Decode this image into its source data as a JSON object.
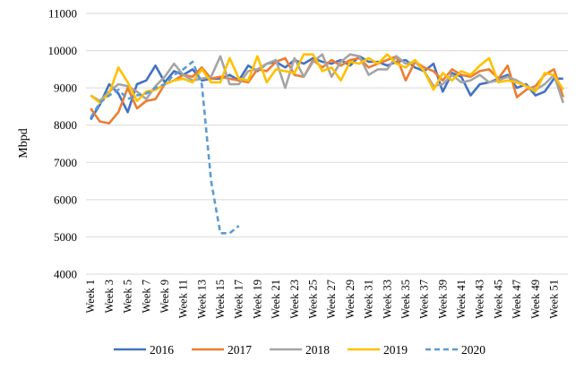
{
  "chart_data": {
    "type": "line",
    "ylabel": "Mbpd",
    "ylim": [
      4000,
      11000
    ],
    "yticks": [
      "4000",
      "5000",
      "6000",
      "7000",
      "8000",
      "9000",
      "10000",
      "11000"
    ],
    "xtick_labels": [
      "Week 1",
      "Week 3",
      "Week 5",
      "Week 7",
      "Week 9",
      "Week 11",
      "Week 13",
      "Week 15",
      "Week 17",
      "Week 19",
      "Week 21",
      "Week 23",
      "Week 25",
      "Week 27",
      "Week 29",
      "Week 31",
      "Week 33",
      "Week 35",
      "Week 37",
      "Week 39",
      "Week 41",
      "Week 43",
      "Week 45",
      "Week 47",
      "Week 49",
      "Week 51"
    ],
    "legend_position": "bottom",
    "grid": "horizontal",
    "series": [
      {
        "name": "2016",
        "color": "#4472c4",
        "style": "solid",
        "values": [
          8150,
          8550,
          9100,
          8850,
          8350,
          9100,
          9200,
          9600,
          9150,
          9450,
          9350,
          9500,
          9200,
          9250,
          9250,
          9350,
          9200,
          9600,
          9450,
          9650,
          9700,
          9550,
          9750,
          9650,
          9800,
          9700,
          9650,
          9750,
          9600,
          9850,
          9700,
          9700,
          9600,
          9700,
          9750,
          9550,
          9450,
          9650,
          8900,
          9400,
          9300,
          8800,
          9100,
          9150,
          9250,
          9350,
          9000,
          9100,
          8800,
          8900,
          9250,
          9250
        ]
      },
      {
        "name": "2017",
        "color": "#ed7d31",
        "style": "solid",
        "values": [
          8450,
          8100,
          8050,
          8350,
          9000,
          8450,
          8650,
          8700,
          9100,
          9200,
          9350,
          9300,
          9550,
          9250,
          9300,
          9250,
          9200,
          9150,
          9500,
          9450,
          9700,
          9800,
          9350,
          9300,
          9750,
          9550,
          9750,
          9600,
          9750,
          9800,
          9550,
          9650,
          9750,
          9850,
          9200,
          9700,
          9550,
          9450,
          9200,
          9500,
          9350,
          9300,
          9450,
          9500,
          9250,
          9600,
          8750,
          8950,
          9050,
          9350,
          9500,
          8750
        ]
      },
      {
        "name": "2018",
        "color": "#a5a5a5",
        "style": "solid",
        "values": [
          8800,
          8650,
          8900,
          9100,
          9050,
          8900,
          8700,
          9050,
          9300,
          9650,
          9350,
          9200,
          9250,
          9300,
          9850,
          9100,
          9100,
          9450,
          9500,
          9650,
          9750,
          9000,
          9800,
          9300,
          9700,
          9900,
          9300,
          9700,
          9900,
          9850,
          9350,
          9500,
          9500,
          9850,
          9650,
          9700,
          9450,
          9050,
          9100,
          9350,
          9150,
          9200,
          9350,
          9150,
          9200,
          9300,
          9200,
          9050,
          8950,
          9100,
          9350,
          8600
        ]
      },
      {
        "name": "2019",
        "color": "#ffc000",
        "style": "solid",
        "values": [
          8800,
          8600,
          8850,
          9550,
          9150,
          8650,
          8900,
          8950,
          9100,
          9200,
          9250,
          9150,
          9500,
          9150,
          9150,
          9800,
          9250,
          9200,
          9850,
          9150,
          9500,
          9450,
          9400,
          9900,
          9900,
          9450,
          9550,
          9200,
          9700,
          9650,
          9800,
          9650,
          9900,
          9650,
          9550,
          9750,
          9450,
          8950,
          9400,
          9200,
          9450,
          9350,
          9600,
          9800,
          9150,
          9200,
          9150,
          9050,
          8900,
          9400,
          9350,
          8950
        ]
      },
      {
        "name": "2020",
        "color": "#5b9bd5",
        "style": "dashed",
        "values": [
          8200,
          8600,
          8800,
          8950,
          8700,
          8800,
          8850,
          9000,
          9100,
          9350,
          9500,
          9700,
          9100,
          6500,
          5100,
          5100,
          5300
        ]
      }
    ]
  }
}
